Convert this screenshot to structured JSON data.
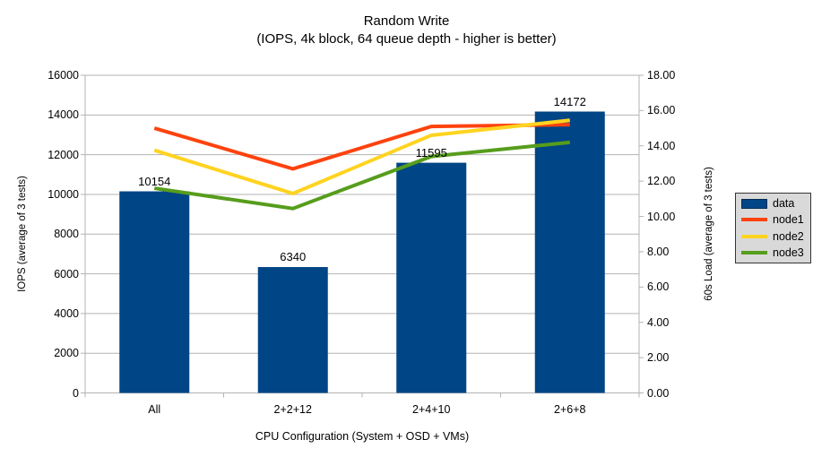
{
  "title": "Random Write",
  "subtitle": "(IOPS, 4k block, 64 queue depth - higher is better)",
  "axes": {
    "left_title": "IOPS (average of 3 tests)",
    "right_title": "60s Load (average of 3 tests)",
    "x_title": "CPU Configuration (System + OSD + VMs)"
  },
  "colors": {
    "bar": "#004586",
    "node1": "#ff420e",
    "node2": "#ffd320",
    "node3": "#579d1c",
    "grid": "#b3b3b3",
    "legend_bg": "#d9d9d9",
    "text": "#000000"
  },
  "chart_data": {
    "type": "bar",
    "combo": "bar with line overlay on secondary axis",
    "title": "Random Write (IOPS, 4k block, 64 queue depth - higher is better)",
    "categories": [
      "All",
      "2+2+12",
      "2+4+10",
      "2+6+8"
    ],
    "bar_series": {
      "name": "data",
      "axis": "left",
      "color": "#004586",
      "values": [
        10154,
        6340,
        11595,
        14172
      ],
      "value_labels": [
        "10154",
        "6340",
        "11595",
        "14172"
      ]
    },
    "line_series": [
      {
        "name": "node1",
        "axis": "right",
        "color": "#ff420e",
        "values": [
          15.0,
          12.7,
          15.1,
          15.2
        ]
      },
      {
        "name": "node2",
        "axis": "right",
        "color": "#ffd320",
        "values": [
          13.75,
          11.3,
          14.6,
          15.45
        ]
      },
      {
        "name": "node3",
        "axis": "right",
        "color": "#579d1c",
        "values": [
          11.6,
          10.45,
          13.4,
          14.2
        ]
      }
    ],
    "xlabel": "CPU Configuration (System + OSD + VMs)",
    "ylabel": "IOPS (average of 3 tests)",
    "y2label": "60s Load (average of 3 tests)",
    "ylim": [
      0,
      16000
    ],
    "ytick_step": 2000,
    "y2lim": [
      0,
      18
    ],
    "y2tick_step": 2,
    "grid": "horizontal gridlines from left axis",
    "legend_position": "right"
  }
}
